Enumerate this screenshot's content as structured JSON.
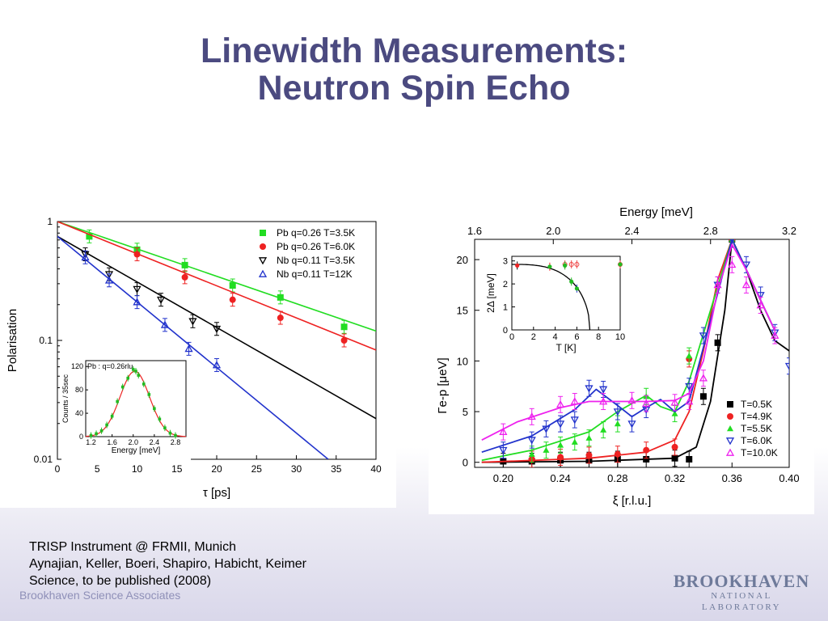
{
  "slide": {
    "title_line1": "Linewidth Measurements:",
    "title_line2": "Neutron Spin Echo",
    "caption_line1": "TRISP Instrument @ FRMII, Munich",
    "caption_line2": "Aynajian, Keller, Boeri, Shapiro, Habicht, Keimer",
    "caption_line3": "Science, to be published (2008)",
    "footer_left": "Brookhaven Science Associates",
    "logo_main": "BROOKHAVEN",
    "logo_sub": "NATIONAL LABORATORY"
  },
  "chart_data": [
    {
      "type": "scatter",
      "ylabel": "Polarisation",
      "xlabel": "τ [ps]",
      "yscale": "log",
      "xlim": [
        0,
        40
      ],
      "ylim": [
        0.01,
        1
      ],
      "x_ticks": [
        "0",
        "5",
        "10",
        "15",
        "20",
        "25",
        "30",
        "35",
        "40"
      ],
      "y_ticks": [
        "1",
        "0.1",
        "0.01"
      ],
      "legend_position": "top-right",
      "series": [
        {
          "name": "Pb q=0.26  T=3.5K",
          "color": "#22dd22",
          "marker": "square",
          "x": [
            4,
            10,
            16,
            22,
            28,
            36
          ],
          "y": [
            0.75,
            0.58,
            0.43,
            0.29,
            0.23,
            0.13
          ],
          "fit": [
            [
              0,
              1.0
            ],
            [
              40,
              0.12
            ]
          ]
        },
        {
          "name": "Pb q=0.26  T=6.0K",
          "color": "#ee2222",
          "marker": "circle",
          "x": [
            10,
            16,
            22,
            28,
            36
          ],
          "y": [
            0.53,
            0.34,
            0.22,
            0.155,
            0.1
          ],
          "fit": [
            [
              0,
              1.0
            ],
            [
              40,
              0.083
            ]
          ]
        },
        {
          "name": "Nb q=0.11  T=3.5K",
          "color": "#000000",
          "marker": "tri-down",
          "x": [
            3.5,
            6.5,
            10,
            13,
            17,
            20
          ],
          "y": [
            0.53,
            0.36,
            0.27,
            0.22,
            0.145,
            0.125
          ],
          "fit": [
            [
              0,
              0.75
            ],
            [
              40,
              0.022
            ]
          ]
        },
        {
          "name": "Nb q=0.11  T=12K",
          "color": "#2233cc",
          "marker": "tri-up",
          "x": [
            3.5,
            6.5,
            10,
            13.5,
            16.5,
            20
          ],
          "y": [
            0.5,
            0.32,
            0.21,
            0.135,
            0.085,
            0.062
          ],
          "fit": [
            [
              0,
              0.75
            ],
            [
              34,
              0.01
            ]
          ]
        }
      ],
      "inset": {
        "label": "Pb : q=0.26rlu",
        "ylabel": "Counts / 35sec",
        "xlabel": "Energy [meV]",
        "xlim": [
          1.1,
          3.0
        ],
        "ylim": [
          0,
          130
        ],
        "x_ticks": [
          "1.2",
          "1.6",
          "2.0",
          "2.4",
          "2.8"
        ],
        "y_ticks": [
          "0",
          "40",
          "80",
          "120"
        ],
        "x": [
          1.2,
          1.3,
          1.4,
          1.5,
          1.6,
          1.7,
          1.8,
          1.9,
          2.0,
          2.05,
          2.1,
          2.2,
          2.3,
          2.4,
          2.5,
          2.6,
          2.7,
          2.8
        ],
        "y": [
          2,
          5,
          10,
          20,
          35,
          60,
          85,
          100,
          115,
          112,
          105,
          90,
          72,
          48,
          30,
          15,
          6,
          2
        ],
        "fit_center": 2.03,
        "fit_amplitude": 112,
        "fit_sigma": 0.28
      }
    },
    {
      "type": "scatter",
      "ylabel": "Γe-p [μeV]",
      "xlabel": "ξ [r.l.u.]",
      "top_axis_label": "Energy [meV]",
      "xlim": [
        0.18,
        0.4
      ],
      "ylim": [
        -0.5,
        22
      ],
      "x_ticks": [
        "0.20",
        "0.24",
        "0.28",
        "0.32",
        "0.36",
        "0.40"
      ],
      "y_ticks": [
        "0",
        "5",
        "10",
        "15",
        "20"
      ],
      "top_ticks": [
        "1.6",
        "2.0",
        "2.4",
        "2.8",
        "3.2"
      ],
      "legend_position": "bottom-right",
      "series": [
        {
          "name": "T=0.5K",
          "color": "#000000",
          "marker": "square",
          "x": [
            0.2,
            0.22,
            0.24,
            0.26,
            0.28,
            0.3,
            0.32,
            0.33,
            0.34,
            0.35,
            0.36
          ],
          "y": [
            0.1,
            0.1,
            0.2,
            0.2,
            0.3,
            0.3,
            0.4,
            0.3,
            6.5,
            11.8,
            22
          ]
        },
        {
          "name": "T=4.9K",
          "color": "#ee2222",
          "marker": "circle",
          "x": [
            0.22,
            0.24,
            0.26,
            0.28,
            0.3,
            0.32,
            0.33,
            0.36
          ],
          "y": [
            0.3,
            0.5,
            0.7,
            0.8,
            1.2,
            1.5,
            10.2,
            22
          ]
        },
        {
          "name": "T=5.5K",
          "color": "#22dd22",
          "marker": "tri-up",
          "x": [
            0.22,
            0.23,
            0.24,
            0.25,
            0.26,
            0.27,
            0.28,
            0.3,
            0.32,
            0.33,
            0.36
          ],
          "y": [
            0.8,
            1.2,
            1.7,
            2.0,
            2.4,
            3.2,
            3.8,
            6.5,
            4.8,
            10.5,
            22
          ]
        },
        {
          "name": "T=6.0K",
          "color": "#2233cc",
          "marker": "tri-down",
          "x": [
            0.2,
            0.22,
            0.23,
            0.24,
            0.25,
            0.26,
            0.27,
            0.28,
            0.29,
            0.3,
            0.33,
            0.34,
            0.35,
            0.36,
            0.37,
            0.38,
            0.39,
            0.4
          ],
          "y": [
            1.2,
            2.2,
            3.3,
            3.8,
            4.2,
            7.3,
            7.2,
            5.0,
            3.8,
            5.2,
            7.5,
            12.5,
            17.5,
            22,
            19.5,
            16.5,
            12.8,
            9.5
          ]
        },
        {
          "name": "T=10.0K",
          "color": "#ee22ee",
          "marker": "tri-up",
          "x": [
            0.2,
            0.22,
            0.24,
            0.25,
            0.27,
            0.29,
            0.3,
            0.32,
            0.33,
            0.34,
            0.35,
            0.36,
            0.37,
            0.38,
            0.39
          ],
          "y": [
            3.0,
            4.5,
            5.7,
            6.0,
            6.0,
            6.1,
            5.8,
            5.9,
            6.0,
            8.3,
            17.5,
            19.5,
            17.5,
            15.5,
            12.5
          ]
        }
      ],
      "inset": {
        "ylabel": "2Δ [meV]",
        "xlabel": "T [K]",
        "xlim": [
          0,
          10
        ],
        "ylim": [
          0,
          3.2
        ],
        "x_ticks": [
          "0",
          "2",
          "4",
          "6",
          "8",
          "10"
        ],
        "y_ticks": [
          "0",
          "1",
          "2",
          "3"
        ],
        "x": [
          0.5,
          3.5,
          4.9,
          5.5,
          6.0,
          10.0
        ],
        "y": [
          2.8,
          2.75,
          2.8,
          2.1,
          1.8,
          2.85
        ],
        "open_x": [
          4.9,
          5.5,
          6.0,
          10.0
        ],
        "open_y": [
          2.85,
          2.85,
          2.85,
          2.85
        ],
        "curve_tc": 7.2,
        "curve_gap0": 2.85
      }
    }
  ]
}
